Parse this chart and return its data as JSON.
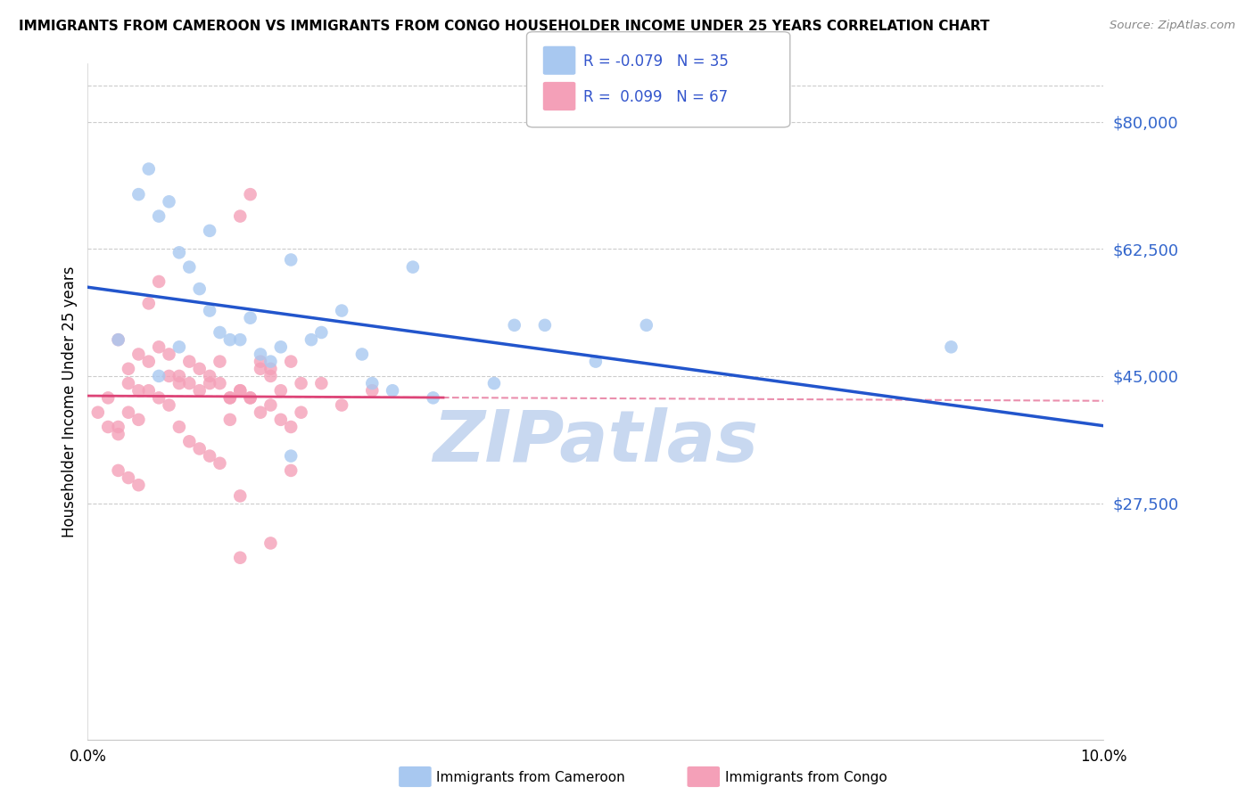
{
  "title": "IMMIGRANTS FROM CAMEROON VS IMMIGRANTS FROM CONGO HOUSEHOLDER INCOME UNDER 25 YEARS CORRELATION CHART",
  "source": "Source: ZipAtlas.com",
  "ylabel": "Householder Income Under 25 years",
  "cameroon_R": "-0.079",
  "cameroon_N": "35",
  "congo_R": "0.099",
  "congo_N": "67",
  "cameroon_color": "#A8C8F0",
  "congo_color": "#F4A0B8",
  "cameroon_line_color": "#2255CC",
  "congo_line_color": "#DD4477",
  "watermark_color": "#C8D8F0",
  "y_tick_vals": [
    27500,
    45000,
    62500,
    80000
  ],
  "x_min": 0.0,
  "x_max": 0.1,
  "y_min": -5000,
  "y_max": 88000,
  "cam_x": [
    0.003,
    0.005,
    0.006,
    0.007,
    0.008,
    0.009,
    0.01,
    0.011,
    0.012,
    0.013,
    0.014,
    0.015,
    0.016,
    0.017,
    0.018,
    0.019,
    0.02,
    0.022,
    0.023,
    0.025,
    0.027,
    0.028,
    0.03,
    0.032,
    0.034,
    0.04,
    0.042,
    0.045,
    0.05,
    0.055,
    0.007,
    0.009,
    0.012,
    0.085,
    0.02
  ],
  "cam_y": [
    50000,
    70000,
    73500,
    67000,
    69000,
    62000,
    60000,
    57000,
    54000,
    51000,
    50000,
    50000,
    53000,
    48000,
    47000,
    49000,
    61000,
    50000,
    51000,
    54000,
    48000,
    44000,
    43000,
    60000,
    42000,
    44000,
    52000,
    52000,
    47000,
    52000,
    45000,
    49000,
    65000,
    49000,
    34000
  ],
  "cng_x": [
    0.001,
    0.002,
    0.003,
    0.004,
    0.005,
    0.006,
    0.007,
    0.008,
    0.009,
    0.01,
    0.011,
    0.012,
    0.013,
    0.014,
    0.015,
    0.016,
    0.017,
    0.018,
    0.019,
    0.02,
    0.021,
    0.003,
    0.004,
    0.005,
    0.006,
    0.007,
    0.008,
    0.009,
    0.01,
    0.011,
    0.012,
    0.013,
    0.014,
    0.015,
    0.016,
    0.017,
    0.018,
    0.019,
    0.02,
    0.021,
    0.002,
    0.003,
    0.004,
    0.005,
    0.006,
    0.007,
    0.008,
    0.009,
    0.01,
    0.011,
    0.012,
    0.013,
    0.014,
    0.015,
    0.016,
    0.017,
    0.018,
    0.003,
    0.004,
    0.005,
    0.023,
    0.025,
    0.028,
    0.015,
    0.02,
    0.015,
    0.018
  ],
  "cng_y": [
    40000,
    42000,
    38000,
    44000,
    43000,
    47000,
    49000,
    48000,
    45000,
    44000,
    43000,
    44000,
    47000,
    42000,
    43000,
    42000,
    40000,
    41000,
    39000,
    38000,
    40000,
    50000,
    46000,
    48000,
    55000,
    58000,
    45000,
    44000,
    47000,
    46000,
    45000,
    44000,
    42000,
    67000,
    70000,
    46000,
    45000,
    43000,
    47000,
    44000,
    38000,
    37000,
    40000,
    39000,
    43000,
    42000,
    41000,
    38000,
    36000,
    35000,
    34000,
    33000,
    39000,
    43000,
    42000,
    47000,
    46000,
    32000,
    31000,
    30000,
    44000,
    41000,
    43000,
    28500,
    32000,
    20000,
    22000
  ]
}
